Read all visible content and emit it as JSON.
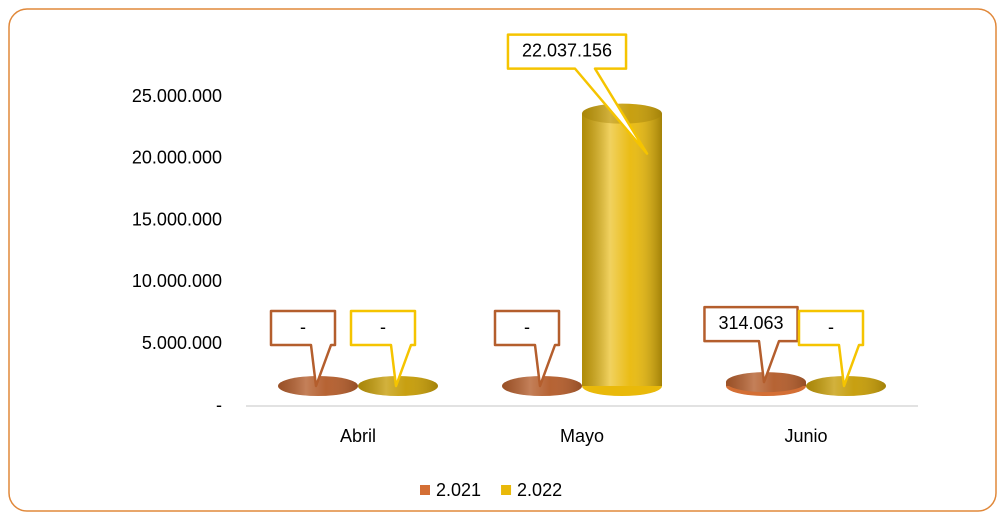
{
  "chart_data": {
    "type": "bar",
    "categories": [
      "Abril",
      "Mayo",
      "Junio"
    ],
    "series": [
      {
        "name": "2.021",
        "color": "#d46f35",
        "values": [
          0,
          0,
          314063
        ],
        "value_labels": [
          "-",
          "-",
          "314.063"
        ]
      },
      {
        "name": "2.022",
        "color": "#e9b90a",
        "values": [
          0,
          22037156,
          0
        ],
        "value_labels": [
          "-",
          "22.037.156",
          "-"
        ]
      }
    ],
    "ylim": [
      0,
      25000000
    ],
    "yticks": [
      {
        "value": 0,
        "label": "-"
      },
      {
        "value": 5000000,
        "label": "5.000.000"
      },
      {
        "value": 10000000,
        "label": "10.000.000"
      },
      {
        "value": 15000000,
        "label": "15.000.000"
      },
      {
        "value": 20000000,
        "label": "20.000.000"
      },
      {
        "value": 25000000,
        "label": "25.000.000"
      }
    ],
    "legend": "bottom"
  }
}
